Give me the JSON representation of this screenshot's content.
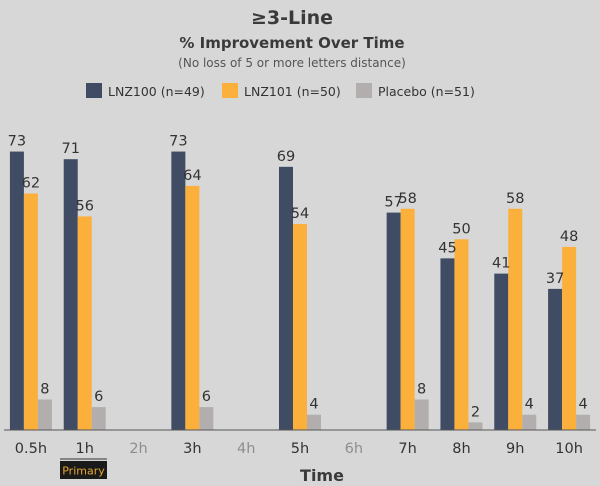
{
  "chart_data": {
    "type": "bar",
    "title": "≥3-Line",
    "subtitle": "% Improvement Over Time",
    "note": "(No loss of 5 or more letters distance)",
    "xlabel": "Time",
    "ylabel": "",
    "ylim": [
      0,
      80
    ],
    "grid": false,
    "legend_position": "top",
    "categories": [
      "0.5h",
      "1h",
      "2h",
      "3h",
      "4h",
      "5h",
      "6h",
      "7h",
      "8h",
      "9h",
      "10h"
    ],
    "series": [
      {
        "name": "LNZ100 (n=49)",
        "color": "#3f4c63",
        "values": [
          73,
          71,
          null,
          73,
          null,
          69,
          null,
          57,
          45,
          41,
          37
        ]
      },
      {
        "name": "LNZ101 (n=50)",
        "color": "#fbb03b",
        "values": [
          62,
          56,
          null,
          64,
          null,
          54,
          null,
          58,
          50,
          58,
          48
        ]
      },
      {
        "name": "Placebo (n=51)",
        "color": "#b2aeae",
        "values": [
          8,
          6,
          null,
          6,
          null,
          4,
          null,
          8,
          2,
          4,
          4
        ]
      }
    ],
    "annotation": {
      "text": "Primary",
      "category": "1h"
    }
  }
}
